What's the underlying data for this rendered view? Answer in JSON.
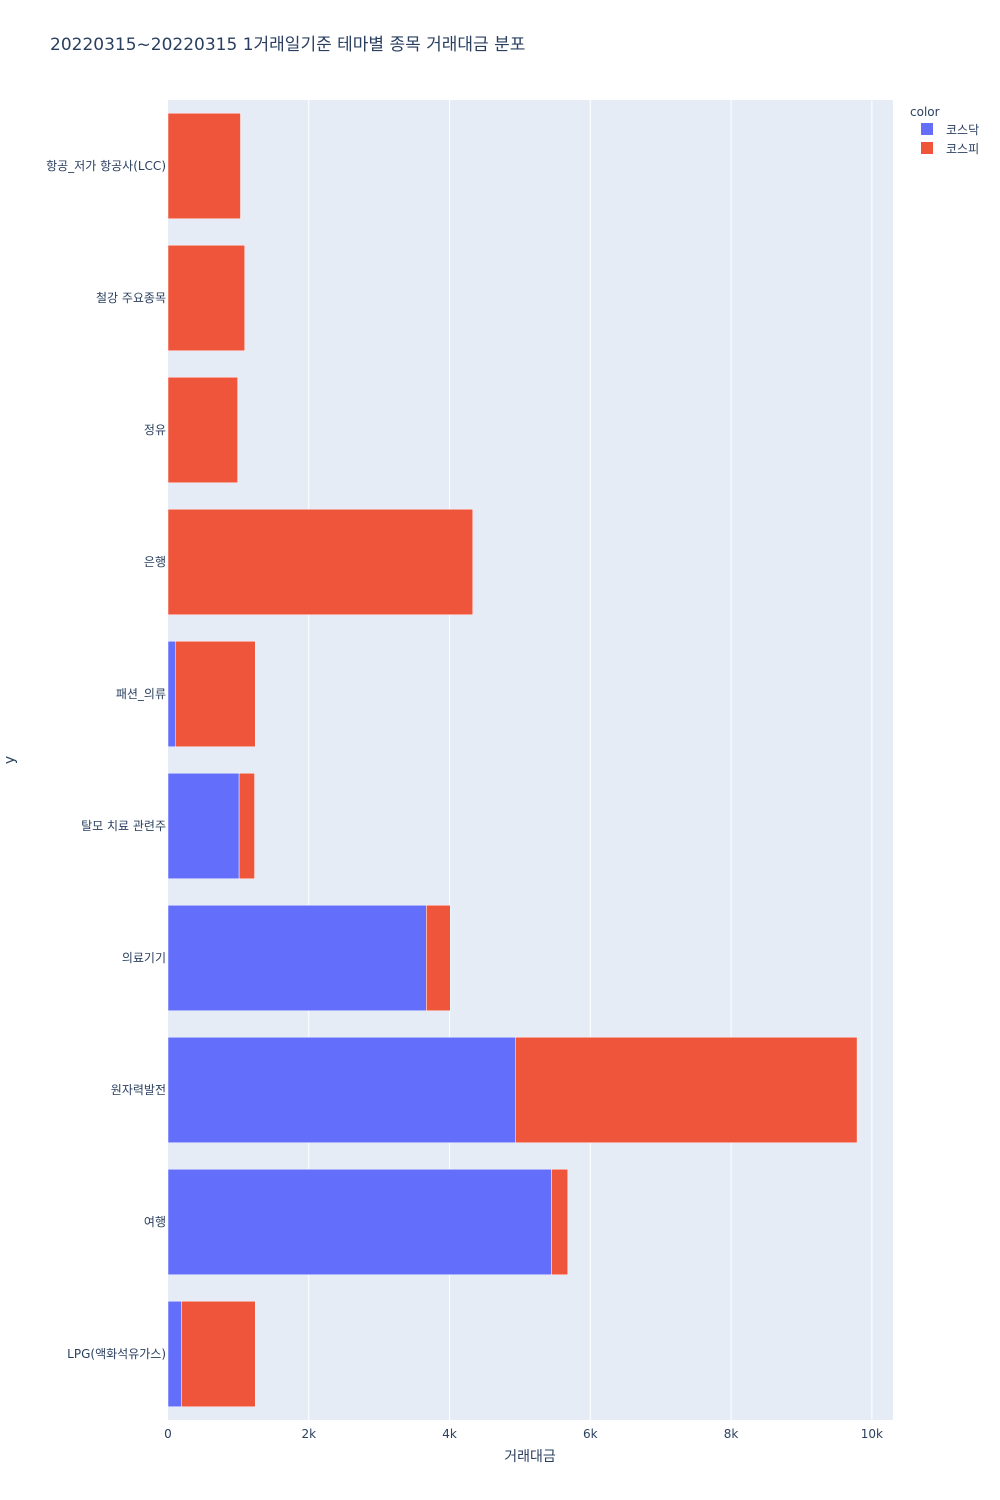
{
  "chart_data": {
    "type": "bar",
    "orientation": "horizontal",
    "barmode": "stack",
    "title": "20220315~20220315 1거래일기준 테마별 종목 거래대금 분포",
    "xlabel": "거래대금",
    "ylabel": "y",
    "xlim": [
      0,
      10300
    ],
    "x_ticks": [
      0,
      2000,
      4000,
      6000,
      8000,
      10000
    ],
    "x_tick_labels": [
      "0",
      "2k",
      "4k",
      "6k",
      "8k",
      "10k"
    ],
    "categories": [
      "LPG(액화석유가스)",
      "여행",
      "원자력발전",
      "의료기기",
      "탈모 치료 관련주",
      "패션_의류",
      "은행",
      "정유",
      "철강 주요종목",
      "항공_저가 항공사(LCC)"
    ],
    "legend_title": "color",
    "legend_position": "top-right",
    "grid": true,
    "series": [
      {
        "name": "코스닥",
        "color": "#636efa",
        "values": [
          190,
          5450,
          4940,
          3670,
          1010,
          110,
          0,
          0,
          0,
          0
        ]
      },
      {
        "name": "코스피",
        "color": "#ef553b",
        "values": [
          1050,
          230,
          4850,
          340,
          220,
          1130,
          4330,
          990,
          1090,
          1030
        ]
      }
    ]
  }
}
